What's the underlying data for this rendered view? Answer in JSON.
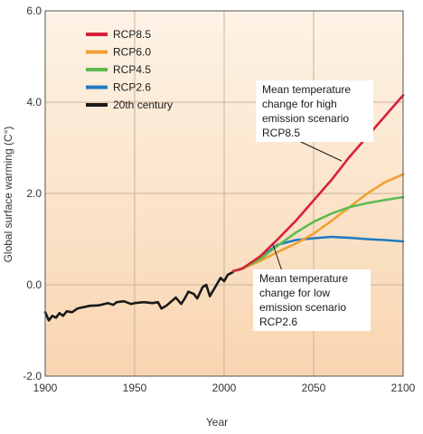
{
  "chart_data": {
    "type": "line",
    "xlabel": "Year",
    "ylabel": "Global surface warming (C°)",
    "xlim": [
      1900,
      2100
    ],
    "ylim": [
      -2.0,
      6.0
    ],
    "x_ticks": [
      "1900",
      "1950",
      "2000",
      "2050",
      "2100"
    ],
    "y_ticks": [
      "-2.0",
      "0.0",
      "2.0",
      "4.0",
      "6.0"
    ],
    "grid": true,
    "legend_position": "top-left",
    "background": "peach gradient, deepening toward the bottom",
    "series": [
      {
        "name": "RCP8.5",
        "color": "#d9213a",
        "x": [
          2005,
          2010,
          2020,
          2030,
          2040,
          2050,
          2060,
          2070,
          2080,
          2090,
          2100
        ],
        "y": [
          0.3,
          0.35,
          0.62,
          1.0,
          1.4,
          1.85,
          2.3,
          2.8,
          3.25,
          3.7,
          4.15
        ]
      },
      {
        "name": "RCP6.0",
        "color": "#f0a033",
        "x": [
          2005,
          2010,
          2020,
          2030,
          2040,
          2050,
          2060,
          2070,
          2080,
          2090,
          2100
        ],
        "y": [
          0.3,
          0.35,
          0.52,
          0.72,
          0.9,
          1.12,
          1.4,
          1.7,
          2.0,
          2.25,
          2.42
        ]
      },
      {
        "name": "RCP4.5",
        "color": "#5dbb4f",
        "x": [
          2005,
          2010,
          2020,
          2030,
          2040,
          2050,
          2060,
          2070,
          2080,
          2090,
          2100
        ],
        "y": [
          0.3,
          0.36,
          0.56,
          0.86,
          1.14,
          1.38,
          1.56,
          1.7,
          1.79,
          1.86,
          1.92
        ]
      },
      {
        "name": "RCP2.6",
        "color": "#1f7bc0",
        "x": [
          2005,
          2010,
          2020,
          2030,
          2040,
          2050,
          2060,
          2070,
          2080,
          2090,
          2100
        ],
        "y": [
          0.3,
          0.35,
          0.6,
          0.88,
          0.98,
          1.02,
          1.05,
          1.03,
          1.0,
          0.98,
          0.95
        ]
      },
      {
        "name": "20th century",
        "color": "#1a1a1a",
        "x": [
          1900,
          1902,
          1904,
          1906,
          1908,
          1910,
          1912,
          1915,
          1918,
          1920,
          1925,
          1930,
          1935,
          1938,
          1940,
          1944,
          1948,
          1950,
          1955,
          1960,
          1963,
          1965,
          1968,
          1970,
          1973,
          1976,
          1978,
          1980,
          1983,
          1985,
          1988,
          1990,
          1992,
          1995,
          1998,
          2000,
          2002,
          2005
        ],
        "y": [
          -0.6,
          -0.78,
          -0.68,
          -0.72,
          -0.62,
          -0.68,
          -0.58,
          -0.6,
          -0.52,
          -0.5,
          -0.46,
          -0.45,
          -0.4,
          -0.44,
          -0.38,
          -0.36,
          -0.42,
          -0.4,
          -0.38,
          -0.4,
          -0.38,
          -0.52,
          -0.45,
          -0.38,
          -0.28,
          -0.42,
          -0.3,
          -0.15,
          -0.2,
          -0.3,
          -0.05,
          0.0,
          -0.25,
          -0.05,
          0.15,
          0.08,
          0.22,
          0.28
        ]
      }
    ],
    "annotations": [
      {
        "lines": [
          "Mean temperature",
          "change for high",
          "emission scenario",
          "RCP8.5"
        ]
      },
      {
        "lines": [
          "Mean temperature",
          "change for low",
          "emission scenario",
          "RCP2.6"
        ]
      }
    ]
  }
}
